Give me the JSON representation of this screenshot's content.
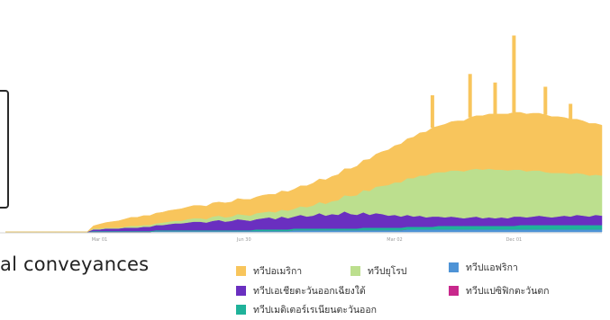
{
  "caption": "al conveyances",
  "chart_data": {
    "type": "area",
    "stacked": true,
    "x_tick_labels": [
      "Mar 01",
      "Jun 30",
      "Mar 02",
      "Dec 01"
    ],
    "grid": false,
    "legend_position": "bottom-right",
    "series": [
      {
        "name": "ทวีปแอฟริกา",
        "color": "#4e93d6",
        "values": [
          0,
          0,
          0,
          0,
          0,
          0,
          0,
          0,
          0,
          0,
          0,
          0,
          0,
          0,
          0,
          0,
          0,
          0,
          0,
          0,
          0,
          0,
          0,
          0,
          1,
          1,
          1,
          1,
          1,
          1,
          1,
          1,
          1,
          1,
          1,
          1,
          1,
          1,
          1,
          1,
          1,
          1,
          1,
          1,
          1,
          1,
          2,
          2,
          2,
          2,
          2,
          2,
          2,
          2,
          2,
          2,
          2,
          2,
          2,
          2,
          2,
          2,
          2,
          2,
          3,
          3,
          3,
          3,
          3,
          3,
          3,
          3,
          3,
          3,
          3,
          3,
          3,
          3,
          3,
          3,
          3,
          3,
          3,
          3,
          3,
          3,
          3,
          3,
          3,
          3,
          3,
          3,
          3,
          3,
          3,
          3
        ]
      },
      {
        "name": "ทวีปแปซิฟิกตะวันตก",
        "color": "#c8288c",
        "values": [
          0,
          0,
          0,
          0,
          0,
          0,
          0,
          0,
          0,
          0,
          0,
          0,
          0,
          0,
          0,
          0,
          0,
          0,
          0,
          0,
          0,
          0,
          0,
          0,
          0,
          0,
          0,
          0,
          0,
          0,
          0,
          0,
          0,
          0,
          0,
          0,
          0,
          0,
          0,
          0,
          0,
          0,
          0,
          0,
          0,
          0,
          0,
          0,
          0,
          0,
          0,
          0,
          0,
          0,
          0,
          0,
          0,
          0,
          0,
          0,
          0,
          0,
          0,
          0,
          0,
          0,
          0,
          0,
          0,
          0,
          0,
          0,
          0,
          0,
          0,
          0,
          0,
          0,
          0,
          0,
          0,
          0,
          0,
          0,
          0,
          0,
          0,
          0,
          0,
          0,
          0,
          0,
          0,
          0,
          0,
          0
        ]
      },
      {
        "name": "ทวีปเมดิเตอร์เรเนียนตะวันออก",
        "color": "#1fb29a",
        "values": [
          0,
          0,
          0,
          0,
          0,
          0,
          0,
          0,
          0,
          0,
          0,
          0,
          0,
          0,
          1,
          1,
          1,
          1,
          1,
          1,
          1,
          1,
          1,
          1,
          1,
          1,
          1,
          1,
          1,
          1,
          1,
          1,
          1,
          1,
          1,
          1,
          1,
          1,
          1,
          1,
          2,
          2,
          2,
          2,
          2,
          2,
          2,
          2,
          2,
          2,
          2,
          2,
          2,
          2,
          2,
          2,
          2,
          3,
          3,
          3,
          3,
          3,
          3,
          3,
          3,
          3,
          3,
          3,
          3,
          4,
          4,
          4,
          4,
          4,
          4,
          4,
          4,
          4,
          4,
          4,
          4,
          4,
          5,
          5,
          5,
          5,
          5,
          5,
          5,
          5,
          5,
          5,
          5,
          5,
          5,
          5
        ]
      },
      {
        "name": "ทวีปเอเชียตะวันออกเฉียงใต้",
        "color": "#6a2fc0",
        "values": [
          0,
          0,
          0,
          0,
          0,
          0,
          0,
          0,
          0,
          0,
          0,
          0,
          0,
          0,
          2,
          2,
          3,
          3,
          3,
          4,
          4,
          4,
          5,
          5,
          6,
          6,
          7,
          8,
          8,
          9,
          10,
          10,
          9,
          11,
          12,
          10,
          11,
          13,
          12,
          11,
          12,
          13,
          14,
          12,
          15,
          13,
          14,
          16,
          14,
          15,
          18,
          15,
          17,
          16,
          20,
          17,
          16,
          18,
          15,
          17,
          16,
          14,
          15,
          13,
          14,
          12,
          13,
          11,
          12,
          11,
          10,
          11,
          10,
          9,
          10,
          11,
          9,
          10,
          9,
          10,
          9,
          11,
          10,
          9,
          10,
          11,
          10,
          9,
          10,
          11,
          10,
          12,
          11,
          10,
          12,
          11
        ]
      },
      {
        "name": "ทวีปยุโรป",
        "color": "#bcdf8e",
        "values": [
          0,
          0,
          0,
          0,
          0,
          0,
          0,
          0,
          0,
          0,
          0,
          0,
          0,
          0,
          1,
          1,
          1,
          1,
          1,
          1,
          2,
          2,
          2,
          2,
          2,
          3,
          3,
          3,
          3,
          4,
          4,
          4,
          4,
          5,
          5,
          5,
          5,
          6,
          6,
          6,
          7,
          7,
          7,
          8,
          8,
          9,
          9,
          10,
          11,
          12,
          13,
          14,
          15,
          17,
          19,
          21,
          23,
          26,
          28,
          31,
          33,
          36,
          38,
          40,
          43,
          45,
          47,
          49,
          51,
          52,
          53,
          54,
          55,
          55,
          56,
          56,
          57,
          57,
          57,
          56,
          56,
          55,
          55,
          54,
          54,
          53,
          52,
          52,
          51,
          50,
          50,
          49,
          49,
          48,
          47,
          47
        ]
      },
      {
        "name": "ทวีปอเมริกา",
        "color": "#f8c55c",
        "values": [
          0,
          0,
          0,
          0,
          0,
          0,
          0,
          0,
          0,
          0,
          0,
          0,
          0,
          0,
          3,
          5,
          6,
          7,
          8,
          9,
          10,
          10,
          11,
          11,
          12,
          12,
          13,
          13,
          14,
          14,
          15,
          15,
          15,
          16,
          16,
          17,
          17,
          18,
          18,
          19,
          19,
          20,
          20,
          21,
          22,
          22,
          23,
          24,
          25,
          26,
          27,
          28,
          29,
          30,
          31,
          32,
          34,
          35,
          37,
          38,
          40,
          41,
          43,
          45,
          46,
          48,
          50,
          51,
          53,
          54,
          56,
          57,
          58,
          59,
          61,
          62,
          63,
          64,
          65,
          65,
          66,
          67,
          67,
          67,
          67,
          67,
          67,
          66,
          66,
          65,
          64,
          63,
          62,
          61,
          60,
          59
        ]
      }
    ],
    "spikes": [
      {
        "i": 81,
        "total": 230
      },
      {
        "i": 74,
        "total": 185
      },
      {
        "i": 86,
        "total": 170
      },
      {
        "i": 68,
        "total": 160
      },
      {
        "i": 78,
        "total": 175
      },
      {
        "i": 90,
        "total": 150
      }
    ]
  },
  "legend": [
    {
      "label": "ทวีปอเมริกา",
      "color": "#f8c55c"
    },
    {
      "label": "ทวีปยุโรป",
      "color": "#bcdf8e"
    },
    {
      "label": "ทวีปแอฟริกา",
      "color": "#4e93d6"
    },
    {
      "label": "ทวีปเอเชียตะวันออกเฉียงใต้",
      "color": "#6a2fc0"
    },
    {
      "label": "ทวีปแปซิฟิกตะวันตก",
      "color": "#c8288c"
    },
    {
      "label": "ทวีปเมดิเตอร์เรเนียนตะวันออก",
      "color": "#1fb29a"
    }
  ]
}
